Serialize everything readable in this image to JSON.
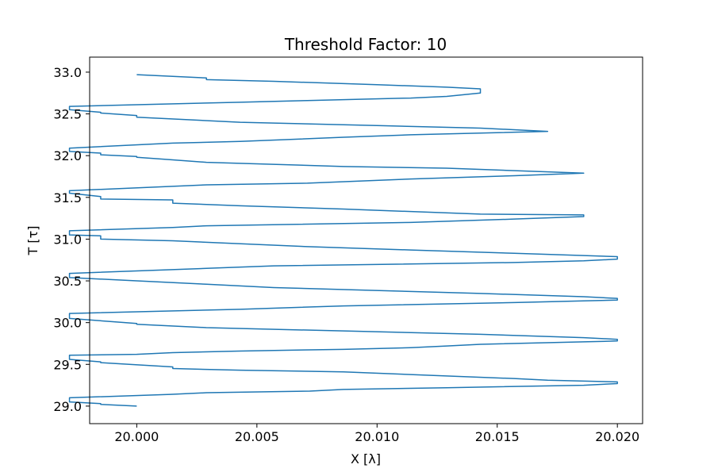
{
  "chart_data": {
    "type": "line",
    "title": "Threshold Factor: 10",
    "xlabel": "X [λ]",
    "ylabel": "T [τ]",
    "xlim": [
      19.99804,
      20.02105
    ],
    "ylim": [
      28.79,
      33.18
    ],
    "grid": false,
    "line_color": "#1f77b4",
    "x_ticks": [
      {
        "value": 20.0,
        "label": "20.000"
      },
      {
        "value": 20.005,
        "label": "20.005"
      },
      {
        "value": 20.01,
        "label": "20.010"
      },
      {
        "value": 20.015,
        "label": "20.015"
      },
      {
        "value": 20.02,
        "label": "20.020"
      }
    ],
    "y_ticks": [
      {
        "value": 29.0,
        "label": "29.0"
      },
      {
        "value": 29.5,
        "label": "29.5"
      },
      {
        "value": 30.0,
        "label": "30.0"
      },
      {
        "value": 30.5,
        "label": "30.5"
      },
      {
        "value": 31.0,
        "label": "31.0"
      },
      {
        "value": 31.5,
        "label": "31.5"
      },
      {
        "value": 32.0,
        "label": "32.0"
      },
      {
        "value": 32.5,
        "label": "32.5"
      },
      {
        "value": 33.0,
        "label": "33.0"
      }
    ],
    "series": [
      {
        "x": [
          20.0,
          19.9985,
          19.9985,
          19.9972,
          19.9972,
          20.0014,
          20.0029,
          20.0072,
          20.0086,
          20.0129,
          20.0186,
          20.02,
          20.02,
          20.0171,
          20.0157,
          20.0086,
          20.0043,
          20.0015,
          20.0015,
          19.9985,
          19.9985,
          19.9972,
          19.9972,
          20.0,
          20.0015,
          20.0043,
          20.0086,
          20.0114,
          20.0129,
          20.0143,
          20.0186,
          20.02,
          20.02,
          20.0186,
          20.0143,
          20.0086,
          20.0029,
          20.0,
          20.0,
          19.9972,
          19.9972,
          20.0043,
          20.0086,
          20.0157,
          20.0186,
          20.02,
          20.02,
          20.0186,
          20.0143,
          20.0057,
          20.0029,
          20.0,
          20.0,
          19.9972,
          19.9972,
          20.0029,
          20.0057,
          20.0157,
          20.0186,
          20.02,
          20.02,
          20.0157,
          20.0114,
          20.0071,
          20.0015,
          19.9985,
          19.9985,
          19.9972,
          19.9972,
          20.0015,
          20.0029,
          20.0114,
          20.0157,
          20.0186,
          20.0186,
          20.0143,
          20.0086,
          20.0043,
          20.0015,
          20.0015,
          19.9985,
          19.9985,
          19.9972,
          19.9972,
          20.0029,
          20.0071,
          20.0114,
          20.0157,
          20.0186,
          20.0129,
          20.0086,
          20.0029,
          20.0015,
          20.0,
          20.0,
          19.9985,
          19.9985,
          19.9972,
          19.9972,
          20.0015,
          20.0043,
          20.0086,
          20.0114,
          20.0143,
          20.0171,
          20.0171,
          20.0143,
          20.01,
          20.0043,
          20.0,
          20.0,
          19.9985,
          19.9985,
          19.9972,
          19.9972,
          20.0,
          20.0043,
          20.0071,
          20.0114,
          20.0129,
          20.0143,
          20.0143,
          20.0129,
          20.01,
          20.0057,
          20.0029,
          20.0029,
          20.0
        ],
        "y": [
          29.0,
          29.02,
          29.03,
          29.05,
          29.1,
          29.14,
          29.16,
          29.18,
          29.2,
          29.22,
          29.25,
          29.27,
          29.29,
          29.31,
          29.33,
          29.41,
          29.43,
          29.45,
          29.47,
          29.52,
          29.53,
          29.56,
          29.61,
          29.62,
          29.64,
          29.66,
          29.68,
          29.7,
          29.72,
          29.74,
          29.77,
          29.78,
          29.8,
          29.82,
          29.86,
          29.9,
          29.94,
          29.98,
          29.99,
          30.05,
          30.11,
          30.16,
          30.2,
          30.24,
          30.26,
          30.27,
          30.29,
          30.31,
          30.35,
          30.42,
          30.46,
          30.5,
          30.5,
          30.54,
          30.59,
          30.65,
          30.68,
          30.72,
          30.74,
          30.76,
          30.79,
          30.83,
          30.87,
          30.91,
          30.98,
          31.0,
          31.04,
          31.05,
          31.1,
          31.14,
          31.16,
          31.2,
          31.24,
          31.27,
          31.29,
          31.3,
          31.36,
          31.4,
          31.43,
          31.47,
          31.48,
          31.51,
          31.55,
          31.58,
          31.65,
          31.67,
          31.72,
          31.76,
          31.79,
          31.85,
          31.87,
          31.92,
          31.95,
          31.98,
          31.99,
          32.01,
          32.03,
          32.05,
          32.09,
          32.15,
          32.17,
          32.22,
          32.25,
          32.27,
          32.29,
          32.29,
          32.33,
          32.36,
          32.4,
          32.46,
          32.48,
          32.51,
          32.52,
          32.55,
          32.59,
          32.61,
          32.64,
          32.66,
          32.69,
          32.71,
          32.75,
          32.8,
          32.82,
          32.85,
          32.89,
          32.91,
          32.93,
          32.97
        ]
      }
    ]
  }
}
